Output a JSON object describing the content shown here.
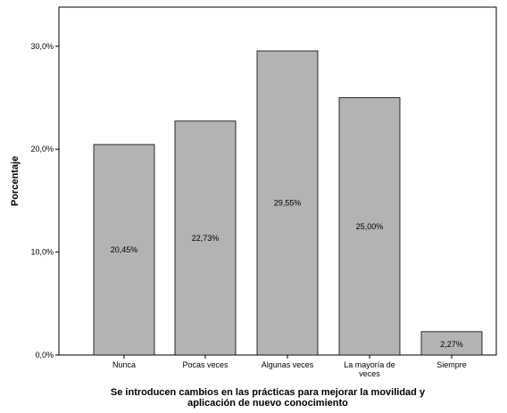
{
  "chart_data": {
    "type": "bar",
    "categories": [
      [
        "Nunca"
      ],
      [
        "Pocas veces"
      ],
      [
        "Algunas veces"
      ],
      [
        "La mayoría de",
        "veces"
      ],
      [
        "Siempre"
      ]
    ],
    "values": [
      20.45,
      22.73,
      29.55,
      25.0,
      2.27
    ],
    "data_labels": [
      "20,45%",
      "22,73%",
      "29,55%",
      "25,00%",
      "2,27%"
    ],
    "ylabel": "Porcentaje",
    "xlabel": [
      "Se introducen cambios en las prácticas para mejorar la movilidad y",
      "aplicación de nuevo conocimiento"
    ],
    "yticks": [
      0,
      10,
      20,
      30
    ],
    "ytick_labels": [
      "0,0%",
      "10,0%",
      "20,0%",
      "30,0%"
    ],
    "ylim": [
      0,
      33.8
    ],
    "grid": false,
    "colors": {
      "bar": "#b3b3b3",
      "bar_stroke": "#000000",
      "axis": "#000000"
    }
  }
}
